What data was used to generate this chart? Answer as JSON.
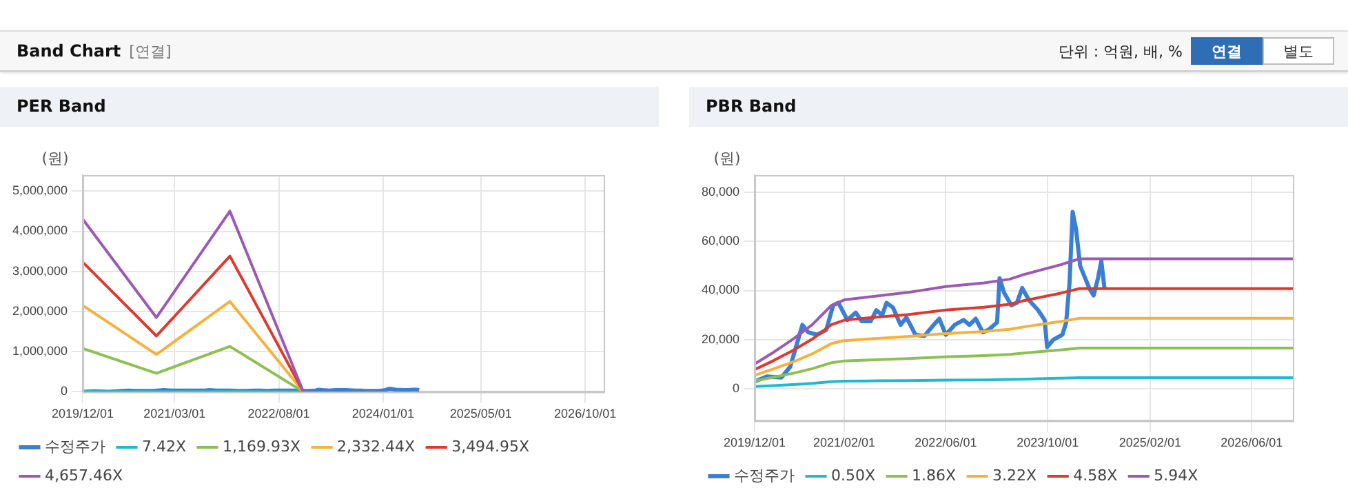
{
  "chart_data": [
    {
      "type": "line",
      "title": "PER Band",
      "ylabel": "(원)",
      "annotations": [
        "Band Chart",
        "[연결]",
        "단위 : 억원, 배, %",
        "연결",
        "별도"
      ],
      "xlim": [
        "2019-12-01",
        "2027-01-01"
      ],
      "xticks": [
        {
          "value": "2019-12-01",
          "label": "2019/12/01"
        },
        {
          "value": "2021-03-01",
          "label": "2021/03/01"
        },
        {
          "value": "2022-08-01",
          "label": "2022/08/01"
        },
        {
          "value": "2024-01-01",
          "label": "2024/01/01"
        },
        {
          "value": "2025-05-01",
          "label": "2025/05/01"
        },
        {
          "value": "2026-10-01",
          "label": "2026/10/01"
        }
      ],
      "ylim": [
        0,
        5400000
      ],
      "yticks": [
        0,
        {
          "value": 1000000,
          "label": "1,000,000"
        },
        {
          "value": 2000000,
          "label": "2,000,000"
        },
        {
          "value": 3000000,
          "label": "3,000,000"
        },
        {
          "value": 4000000,
          "label": "4,000,000"
        },
        {
          "value": 5000000,
          "label": "5,000,000"
        }
      ],
      "grid": true,
      "legend": "bottom",
      "marker": "none",
      "line_style": "solid",
      "series": [
        {
          "name": "수정주가",
          "color": "#3a7fd5",
          "x": [
            "2019-12-01",
            "2020-01-28",
            "2020-04-07",
            "2020-05-19",
            "2020-07-16",
            "2020-08-13",
            "2020-09-25",
            "2020-11-07",
            "2020-12-10",
            "2021-01-04",
            "2021-02-16",
            "2021-03-28",
            "2021-04-25",
            "2021-06-07",
            "2021-07-04",
            "2021-08-01",
            "2021-08-22",
            "2021-09-22",
            "2021-10-28",
            "2021-11-25",
            "2022-01-07",
            "2022-02-19",
            "2022-04-04",
            "2022-05-01",
            "2022-06-01",
            "2022-07-13",
            "2022-08-25",
            "2022-09-22",
            "2022-10-22",
            "2022-11-25",
            "2022-12-22",
            "2023-02-01",
            "2023-02-13",
            "2023-03-07",
            "2023-04-10",
            "2023-05-07",
            "2023-06-01",
            "2023-07-04",
            "2023-08-16",
            "2023-09-16",
            "2023-09-28",
            "2023-10-28",
            "2023-12-10",
            "2023-12-28",
            "2024-01-13",
            "2024-01-28",
            "2024-02-13",
            "2024-03-04",
            "2024-04-16",
            "2024-05-07",
            "2024-05-28",
            "2024-06-13",
            "2024-06-28"
          ],
          "values": [
            0,
            10000,
            0,
            10000,
            30000,
            20000,
            20000,
            20000,
            30000,
            40000,
            30000,
            30000,
            30000,
            30000,
            30000,
            30000,
            40000,
            30000,
            30000,
            30000,
            20000,
            20000,
            30000,
            30000,
            20000,
            30000,
            30000,
            30000,
            30000,
            20000,
            20000,
            30000,
            50000,
            40000,
            30000,
            40000,
            40000,
            40000,
            30000,
            30000,
            20000,
            20000,
            20000,
            30000,
            40000,
            70000,
            70000,
            50000,
            40000,
            40000,
            50000,
            50000,
            40000
          ]
        },
        {
          "name": "7.42X",
          "color": "#1fbad0",
          "x": [
            "2019-12-01",
            "2020-12-01",
            "2021-12-01",
            "2022-12-01"
          ],
          "values": [
            7000,
            3000,
            7000,
            0
          ]
        },
        {
          "name": "1,169.93X",
          "color": "#8cc152",
          "x": [
            "2019-12-01",
            "2020-12-01",
            "2021-12-01",
            "2022-12-01"
          ],
          "values": [
            1080000,
            460000,
            1130000,
            0
          ]
        },
        {
          "name": "2,332.44X",
          "color": "#f6b03b",
          "x": [
            "2019-12-01",
            "2020-12-01",
            "2021-12-01",
            "2022-12-01"
          ],
          "values": [
            2150000,
            930000,
            2250000,
            0
          ]
        },
        {
          "name": "3,494.95X",
          "color": "#e0382d",
          "x": [
            "2019-12-01",
            "2020-12-01",
            "2021-12-01",
            "2022-12-01"
          ],
          "values": [
            3230000,
            1390000,
            3380000,
            0
          ]
        },
        {
          "name": "4,657.46X",
          "color": "#9b59b6",
          "x": [
            "2019-12-01",
            "2020-12-01",
            "2021-12-01",
            "2022-12-01"
          ],
          "values": [
            4300000,
            1850000,
            4500000,
            0
          ]
        }
      ]
    },
    {
      "type": "line",
      "title": "PBR Band",
      "ylabel": "(원)",
      "xlim": [
        "2019-12-01",
        "2026-12-15"
      ],
      "xticks": [
        {
          "value": "2019-12-01",
          "label": "2019/12/01"
        },
        {
          "value": "2021-02-01",
          "label": "2021/02/01"
        },
        {
          "value": "2022-06-01",
          "label": "2022/06/01"
        },
        {
          "value": "2023-10-01",
          "label": "2023/10/01"
        },
        {
          "value": "2025-02-01",
          "label": "2025/02/01"
        },
        {
          "value": "2026-06-01",
          "label": "2026/06/01"
        }
      ],
      "ylim": [
        -13000,
        87000
      ],
      "yticks": [
        0,
        {
          "value": 20000,
          "label": "20,000"
        },
        {
          "value": 40000,
          "label": "40,000"
        },
        {
          "value": 60000,
          "label": "60,000"
        },
        {
          "value": 80000,
          "label": "80,000"
        }
      ],
      "grid": true,
      "legend": "bottom",
      "marker": "none",
      "line_style": "solid",
      "series": [
        {
          "name": "수정주가",
          "color": "#3a7fd5",
          "x": [
            "2019-12-01",
            "2020-01-28",
            "2020-04-07",
            "2020-05-19",
            "2020-07-16",
            "2020-08-13",
            "2020-09-25",
            "2020-11-07",
            "2020-12-10",
            "2021-01-04",
            "2021-02-16",
            "2021-03-28",
            "2021-04-25",
            "2021-06-07",
            "2021-07-04",
            "2021-08-01",
            "2021-08-22",
            "2021-09-22",
            "2021-10-28",
            "2021-11-25",
            "2022-01-07",
            "2022-02-19",
            "2022-04-04",
            "2022-05-01",
            "2022-06-01",
            "2022-07-13",
            "2022-08-25",
            "2022-09-22",
            "2022-10-22",
            "2022-11-25",
            "2022-12-22",
            "2023-02-01",
            "2023-02-13",
            "2023-03-07",
            "2023-04-10",
            "2023-05-07",
            "2023-06-01",
            "2023-07-04",
            "2023-08-16",
            "2023-09-16",
            "2023-09-28",
            "2023-10-28",
            "2023-12-10",
            "2023-12-28",
            "2024-01-13",
            "2024-01-28",
            "2024-02-13",
            "2024-03-04",
            "2024-04-16",
            "2024-05-07",
            "2024-05-28",
            "2024-06-13",
            "2024-06-28"
          ],
          "values": [
            3000,
            5000,
            4600,
            9000,
            26000,
            23000,
            22000,
            24000,
            34000,
            35000,
            28000,
            31000,
            27500,
            27500,
            32000,
            30000,
            35000,
            33000,
            26000,
            29000,
            22000,
            21500,
            26000,
            28500,
            22000,
            26000,
            28000,
            26000,
            28500,
            23000,
            24000,
            27000,
            45000,
            39000,
            34000,
            35000,
            41000,
            36000,
            32000,
            28000,
            17000,
            20000,
            22000,
            27000,
            43000,
            72000,
            65000,
            50000,
            41000,
            38000,
            45000,
            52000,
            41000
          ]
        },
        {
          "name": "0.50X",
          "color": "#1fbad0",
          "x": [
            "2019-12-01",
            "2020-03-01",
            "2020-06-01",
            "2020-09-01",
            "2020-12-01",
            "2021-02-01",
            "2021-06-01",
            "2021-12-01",
            "2022-06-01",
            "2022-12-01",
            "2023-04-01",
            "2023-06-01",
            "2023-12-01",
            "2024-03-01",
            "2026-12-15"
          ],
          "values": [
            900,
            1300,
            1700,
            2200,
            2900,
            3100,
            3200,
            3300,
            3500,
            3600,
            3800,
            3900,
            4300,
            4500,
            4500
          ]
        },
        {
          "name": "1.86X",
          "color": "#8cc152",
          "x": [
            "2019-12-01",
            "2020-03-01",
            "2020-06-01",
            "2020-09-01",
            "2020-12-01",
            "2021-02-01",
            "2021-06-01",
            "2021-12-01",
            "2022-06-01",
            "2022-12-01",
            "2023-04-01",
            "2023-06-01",
            "2023-12-01",
            "2024-03-01",
            "2026-12-15"
          ],
          "values": [
            3200,
            4700,
            6300,
            8200,
            10600,
            11300,
            11700,
            12300,
            13000,
            13500,
            14000,
            14500,
            15800,
            16600,
            16600
          ]
        },
        {
          "name": "3.22X",
          "color": "#f6b03b",
          "x": [
            "2019-12-01",
            "2020-03-01",
            "2020-06-01",
            "2020-09-01",
            "2020-12-01",
            "2021-02-01",
            "2021-06-01",
            "2021-12-01",
            "2022-06-01",
            "2022-12-01",
            "2023-04-01",
            "2023-06-01",
            "2023-12-01",
            "2024-03-01",
            "2026-12-15"
          ],
          "values": [
            5500,
            8100,
            10900,
            14200,
            18400,
            19600,
            20300,
            21300,
            22500,
            23300,
            24200,
            25100,
            27400,
            28700,
            28700
          ]
        },
        {
          "name": "4.58X",
          "color": "#e0382d",
          "x": [
            "2019-12-01",
            "2020-03-01",
            "2020-06-01",
            "2020-09-01",
            "2020-12-01",
            "2021-02-01",
            "2021-06-01",
            "2021-12-01",
            "2022-06-01",
            "2022-12-01",
            "2023-04-01",
            "2023-06-01",
            "2023-12-01",
            "2024-03-01",
            "2026-12-15"
          ],
          "values": [
            7800,
            11500,
            15600,
            20200,
            26100,
            27900,
            28900,
            30200,
            32100,
            33200,
            34400,
            35700,
            38900,
            40800,
            40800
          ]
        },
        {
          "name": "5.94X",
          "color": "#9b59b6",
          "x": [
            "2019-12-01",
            "2020-03-01",
            "2020-06-01",
            "2020-09-01",
            "2020-12-01",
            "2021-02-01",
            "2021-06-01",
            "2021-12-01",
            "2022-06-01",
            "2022-12-01",
            "2023-04-01",
            "2023-06-01",
            "2023-12-01",
            "2024-03-01",
            "2026-12-15"
          ],
          "values": [
            10100,
            14900,
            20200,
            26100,
            33900,
            36200,
            37400,
            39200,
            41600,
            43100,
            44600,
            46300,
            50500,
            52900,
            52900
          ]
        }
      ]
    }
  ]
}
